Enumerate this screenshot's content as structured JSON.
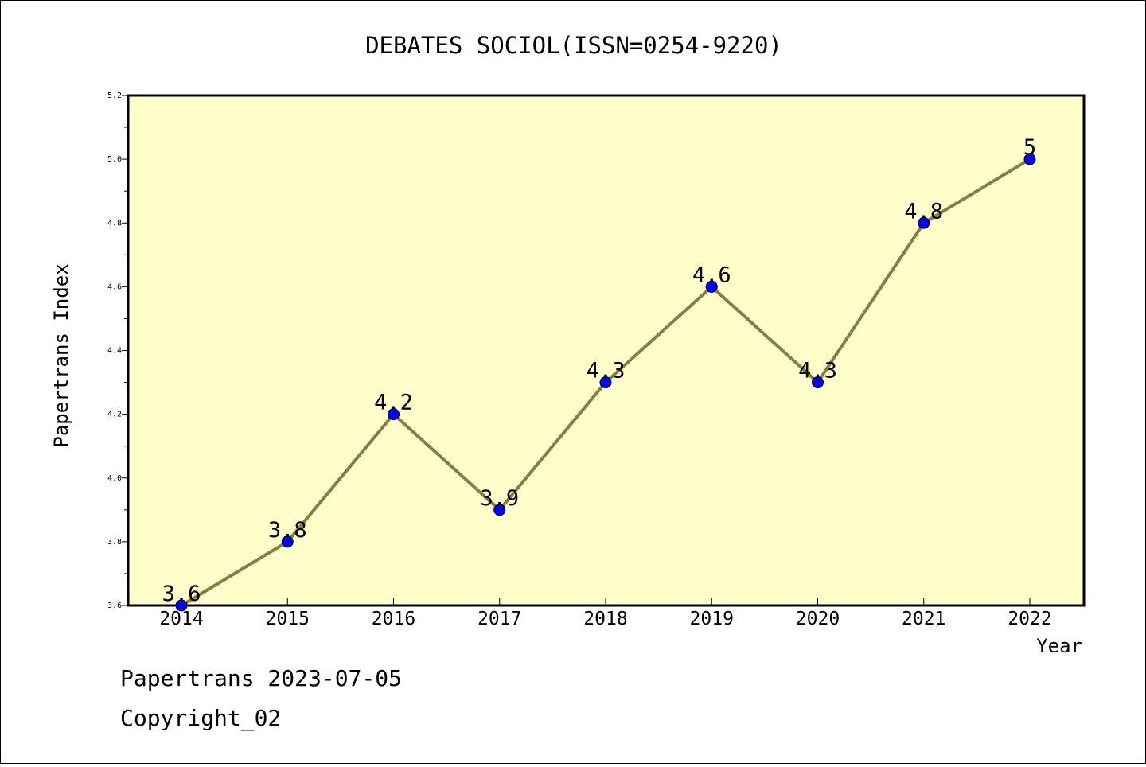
{
  "chart_data": {
    "type": "line",
    "title": "DEBATES SOCIOL(ISSN=0254-9220)",
    "xlabel": "Year",
    "ylabel": "Papertrans Index",
    "categories": [
      "2014",
      "2015",
      "2016",
      "2017",
      "2018",
      "2019",
      "2020",
      "2021",
      "2022"
    ],
    "values": [
      3.6,
      3.8,
      4.2,
      3.9,
      4.3,
      4.6,
      4.3,
      4.8,
      5
    ],
    "point_labels": [
      "3.6",
      "3.8",
      "4.2",
      "3.9",
      "4.3",
      "4.6",
      "4.3",
      "4.8",
      "5"
    ],
    "ylim": [
      3.6,
      5.2
    ],
    "yticks": [
      "3.6",
      "3.8",
      "4.0",
      "4.2",
      "4.4",
      "4.6",
      "4.8",
      "5.0",
      "5.2"
    ],
    "grid": false,
    "colors": {
      "plot_background": "#ffffcc",
      "line": "#8b7d3a",
      "marker": "#0000ff"
    }
  },
  "footer": {
    "line1": "Papertrans 2023-07-05",
    "line2": "Copyright_02"
  }
}
